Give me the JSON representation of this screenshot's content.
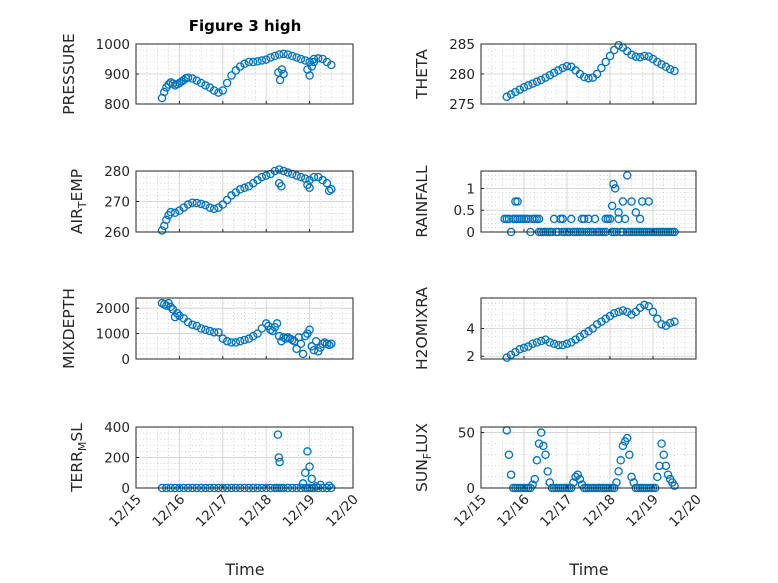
{
  "figure": {
    "title": "Figure 3 high"
  },
  "chart_data": [
    {
      "type": "scatter",
      "id": "pressure",
      "ylabel": "PRESSURE",
      "ylim": [
        800,
        1000
      ],
      "yticks": [
        800,
        900,
        1000
      ],
      "x": [
        15.6,
        15.65,
        15.7,
        15.75,
        15.8,
        15.85,
        15.9,
        15.95,
        16.0,
        16.05,
        16.1,
        16.15,
        16.2,
        16.3,
        16.4,
        16.5,
        16.6,
        16.7,
        16.8,
        16.9,
        17.0,
        17.1,
        17.2,
        17.3,
        17.4,
        17.5,
        17.6,
        17.7,
        17.8,
        17.9,
        18.0,
        18.1,
        18.2,
        18.3,
        18.4,
        18.5,
        18.6,
        18.7,
        18.8,
        18.9,
        19.0,
        19.1,
        19.2,
        19.3,
        19.4,
        19.5,
        18.28,
        18.32,
        18.36,
        18.4,
        18.95,
        19.0,
        19.05,
        19.1
      ],
      "y": [
        820,
        840,
        855,
        865,
        872,
        868,
        862,
        866,
        870,
        875,
        880,
        886,
        888,
        885,
        878,
        870,
        862,
        855,
        845,
        838,
        845,
        870,
        895,
        912,
        925,
        934,
        940,
        940,
        942,
        945,
        948,
        955,
        960,
        965,
        967,
        965,
        960,
        955,
        950,
        945,
        940,
        950,
        952,
        950,
        940,
        930,
        905,
        880,
        915,
        900,
        915,
        895,
        925,
        940
      ]
    },
    {
      "type": "scatter",
      "id": "theta",
      "ylabel": "THETA",
      "ylim": [
        275,
        285
      ],
      "yticks": [
        275,
        280,
        285
      ],
      "x": [
        15.6,
        15.7,
        15.8,
        15.9,
        16.0,
        16.1,
        16.2,
        16.3,
        16.4,
        16.5,
        16.6,
        16.7,
        16.8,
        16.9,
        17.0,
        17.1,
        17.2,
        17.3,
        17.4,
        17.5,
        17.6,
        17.7,
        17.8,
        17.9,
        18.0,
        18.1,
        18.2,
        18.3,
        18.4,
        18.5,
        18.6,
        18.7,
        18.8,
        18.9,
        19.0,
        19.1,
        19.2,
        19.3,
        19.4,
        19.5
      ],
      "y": [
        276.2,
        276.6,
        277.0,
        277.4,
        277.8,
        278.1,
        278.4,
        278.7,
        279.0,
        279.4,
        279.8,
        280.2,
        280.6,
        281.0,
        281.3,
        281.2,
        280.6,
        280.0,
        279.5,
        279.3,
        279.4,
        280.0,
        281.0,
        282.0,
        283.0,
        284.0,
        284.8,
        284.4,
        283.8,
        283.2,
        282.9,
        282.8,
        283.0,
        282.9,
        282.5,
        282.0,
        281.6,
        281.2,
        280.8,
        280.5
      ]
    },
    {
      "type": "scatter",
      "id": "air_temp",
      "ylabel": "AIR_TEMP",
      "ylim": [
        260,
        280
      ],
      "yticks": [
        260,
        270,
        280
      ],
      "x": [
        15.6,
        15.65,
        15.7,
        15.75,
        15.8,
        15.9,
        16.0,
        16.1,
        16.2,
        16.3,
        16.4,
        16.5,
        16.6,
        16.7,
        16.8,
        16.9,
        17.0,
        17.1,
        17.2,
        17.3,
        17.4,
        17.5,
        17.6,
        17.7,
        17.8,
        17.9,
        18.0,
        18.1,
        18.2,
        18.3,
        18.4,
        18.5,
        18.6,
        18.7,
        18.8,
        18.9,
        19.0,
        19.1,
        19.2,
        19.3,
        19.4,
        19.5,
        18.3,
        18.35,
        18.95,
        19.0,
        19.45
      ],
      "y": [
        260.5,
        262.0,
        264.0,
        265.5,
        266.5,
        266.3,
        267.0,
        268.0,
        269.0,
        269.6,
        269.5,
        269.2,
        268.8,
        268.0,
        267.6,
        268.0,
        269.0,
        270.5,
        272.0,
        273.0,
        274.0,
        274.5,
        275.0,
        276.0,
        277.0,
        278.0,
        278.5,
        279.0,
        280.0,
        280.5,
        280.0,
        279.5,
        279.0,
        278.5,
        278.0,
        277.5,
        277.0,
        278.0,
        278.0,
        277.0,
        276.0,
        274.0,
        276.0,
        275.0,
        275.5,
        274.5,
        273.5
      ]
    },
    {
      "type": "scatter",
      "id": "rainfall",
      "ylabel": "RAINFALL",
      "ylim": [
        0,
        1.4
      ],
      "yticks": [
        0,
        0.5,
        1
      ],
      "x": [
        15.55,
        15.6,
        15.65,
        15.7,
        15.75,
        15.8,
        15.85,
        15.9,
        15.95,
        16.0,
        16.05,
        16.1,
        16.15,
        16.2,
        16.25,
        16.3,
        16.35,
        16.4,
        16.45,
        16.5,
        16.55,
        16.6,
        16.65,
        16.7,
        16.75,
        16.8,
        16.85,
        16.9,
        16.95,
        17.0,
        17.05,
        17.1,
        17.15,
        17.2,
        17.25,
        17.3,
        17.35,
        17.4,
        17.45,
        17.5,
        17.55,
        17.6,
        17.65,
        17.7,
        17.75,
        17.8,
        17.85,
        17.9,
        17.95,
        18.0,
        18.05,
        18.1,
        18.15,
        18.2,
        18.25,
        18.3,
        18.35,
        18.4,
        18.45,
        18.5,
        18.55,
        18.6,
        18.65,
        18.7,
        18.75,
        18.8,
        18.85,
        18.9,
        18.95,
        19.0,
        19.05,
        19.1,
        19.15,
        19.2,
        19.25,
        19.3,
        19.35,
        19.4,
        19.45,
        19.5,
        15.8,
        15.85,
        16.35,
        16.9,
        17.35,
        17.5,
        17.9,
        18.05,
        18.08,
        18.12,
        18.2,
        18.3,
        18.4,
        18.5,
        18.6,
        18.7,
        18.75,
        18.9
      ],
      "y": [
        0.3,
        0.3,
        0.3,
        0.0,
        0.3,
        0.3,
        0.3,
        0.3,
        0.3,
        0.3,
        0.3,
        0.3,
        0.0,
        0.3,
        0.3,
        0.3,
        0.0,
        0.0,
        0.0,
        0.0,
        0.0,
        0.0,
        0.0,
        0.3,
        0.0,
        0.0,
        0.3,
        0.0,
        0.0,
        0.0,
        0.0,
        0.3,
        0.0,
        0.0,
        0.0,
        0.0,
        0.0,
        0.3,
        0.0,
        0.0,
        0.0,
        0.0,
        0.3,
        0.0,
        0.0,
        0.0,
        0.0,
        0.0,
        0.3,
        0.3,
        0.0,
        0.0,
        0.0,
        0.3,
        0.0,
        0.0,
        0.3,
        0.0,
        0.0,
        0.0,
        0.0,
        0.0,
        0.0,
        0.0,
        0.0,
        0.0,
        0.0,
        0.0,
        0.0,
        0.0,
        0.0,
        0.0,
        0.0,
        0.0,
        0.0,
        0.0,
        0.0,
        0.0,
        0.0,
        0.0,
        0.7,
        0.7,
        0.3,
        0.3,
        0.3,
        0.3,
        0.3,
        0.6,
        1.1,
        1.0,
        0.45,
        0.7,
        1.3,
        0.7,
        0.45,
        0.3,
        0.7,
        0.7
      ]
    },
    {
      "type": "scatter",
      "id": "mixdepth",
      "ylabel": "MIXDEPTH",
      "ylim": [
        0,
        2400
      ],
      "yticks": [
        0,
        1000,
        2000
      ],
      "x": [
        15.6,
        15.65,
        15.7,
        15.75,
        15.8,
        15.85,
        15.9,
        15.95,
        16.0,
        16.1,
        16.2,
        16.3,
        16.4,
        16.5,
        16.6,
        16.7,
        16.8,
        16.9,
        17.0,
        17.1,
        17.2,
        17.3,
        17.4,
        17.5,
        17.6,
        17.7,
        17.8,
        17.9,
        18.0,
        18.05,
        18.1,
        18.15,
        18.2,
        18.25,
        18.3,
        18.35,
        18.4,
        18.45,
        18.5,
        18.55,
        18.6,
        18.65,
        18.7,
        18.75,
        18.8,
        18.85,
        18.9,
        18.95,
        19.0,
        19.05,
        19.1,
        19.15,
        19.2,
        19.25,
        19.3,
        19.35,
        19.4,
        19.45,
        19.5
      ],
      "y": [
        2200,
        2150,
        2100,
        2200,
        2050,
        1950,
        1650,
        1800,
        1700,
        1600,
        1450,
        1350,
        1300,
        1200,
        1150,
        1100,
        1050,
        1050,
        800,
        700,
        650,
        650,
        700,
        750,
        800,
        900,
        1000,
        1200,
        1400,
        1300,
        1150,
        1100,
        1250,
        1400,
        900,
        700,
        850,
        800,
        850,
        800,
        750,
        700,
        400,
        850,
        600,
        200,
        900,
        1000,
        1150,
        500,
        350,
        700,
        300,
        450,
        600,
        650,
        600,
        550,
        600
      ]
    },
    {
      "type": "scatter",
      "id": "h2omixra",
      "ylabel": "H2OMIXRA",
      "ylim": [
        1.8,
        6.2
      ],
      "yticks": [
        2,
        4
      ],
      "x": [
        15.6,
        15.7,
        15.8,
        15.9,
        16.0,
        16.1,
        16.2,
        16.3,
        16.4,
        16.5,
        16.6,
        16.7,
        16.8,
        16.9,
        17.0,
        17.1,
        17.2,
        17.3,
        17.4,
        17.5,
        17.6,
        17.7,
        17.8,
        17.9,
        18.0,
        18.1,
        18.2,
        18.3,
        18.4,
        18.5,
        18.6,
        18.7,
        18.8,
        18.9,
        19.0,
        19.1,
        19.2,
        19.3,
        19.4,
        19.5
      ],
      "y": [
        1.9,
        2.1,
        2.3,
        2.5,
        2.6,
        2.7,
        2.9,
        3.0,
        3.1,
        3.2,
        3.0,
        2.9,
        2.8,
        2.8,
        2.9,
        3.0,
        3.2,
        3.4,
        3.6,
        3.8,
        4.0,
        4.3,
        4.5,
        4.7,
        4.9,
        5.1,
        5.2,
        5.3,
        5.2,
        5.0,
        5.2,
        5.5,
        5.7,
        5.6,
        5.2,
        4.7,
        4.3,
        4.2,
        4.4,
        4.5
      ]
    },
    {
      "type": "scatter",
      "id": "terr_msl",
      "ylabel": "TERR_MSL",
      "ylim": [
        0,
        400
      ],
      "yticks": [
        0,
        200,
        400
      ],
      "x": [
        15.6,
        15.7,
        15.8,
        15.9,
        16.0,
        16.1,
        16.2,
        16.3,
        16.4,
        16.5,
        16.6,
        16.7,
        16.8,
        16.9,
        17.0,
        17.1,
        17.2,
        17.3,
        17.4,
        17.5,
        17.6,
        17.7,
        17.8,
        17.9,
        18.0,
        18.1,
        18.2,
        18.25,
        18.3,
        18.35,
        18.4,
        18.5,
        18.6,
        18.7,
        18.8,
        18.9,
        18.95,
        19.0,
        19.05,
        19.1,
        19.2,
        19.3,
        19.4,
        19.5,
        18.27,
        18.29,
        18.31,
        18.85,
        18.9,
        18.95,
        19.0,
        19.05,
        19.15,
        19.25,
        19.45
      ],
      "y": [
        0,
        0,
        0,
        0,
        0,
        0,
        0,
        0,
        0,
        0,
        0,
        0,
        0,
        0,
        0,
        0,
        0,
        0,
        0,
        0,
        0,
        0,
        0,
        0,
        0,
        0,
        0,
        0,
        0,
        0,
        0,
        0,
        0,
        0,
        0,
        0,
        0,
        0,
        0,
        0,
        0,
        0,
        0,
        0,
        350,
        200,
        170,
        30,
        100,
        240,
        140,
        60,
        10,
        20,
        15
      ]
    },
    {
      "type": "scatter",
      "id": "sun_flux",
      "ylabel": "SUN_FLUX",
      "ylim": [
        0,
        55
      ],
      "yticks": [
        0,
        50
      ],
      "x": [
        15.6,
        15.65,
        15.7,
        15.75,
        15.8,
        15.85,
        15.9,
        15.95,
        16.0,
        16.05,
        16.1,
        16.15,
        16.2,
        16.25,
        16.3,
        16.35,
        16.4,
        16.45,
        16.5,
        16.55,
        16.6,
        16.65,
        16.7,
        16.75,
        16.8,
        16.85,
        16.9,
        16.95,
        17.0,
        17.05,
        17.1,
        17.15,
        17.2,
        17.25,
        17.3,
        17.35,
        17.4,
        17.45,
        17.5,
        17.55,
        17.6,
        17.65,
        17.7,
        17.75,
        17.8,
        17.85,
        17.9,
        17.95,
        18.0,
        18.05,
        18.1,
        18.15,
        18.2,
        18.25,
        18.3,
        18.35,
        18.4,
        18.45,
        18.5,
        18.55,
        18.6,
        18.65,
        18.7,
        18.75,
        18.8,
        18.85,
        18.9,
        18.95,
        19.0,
        19.05,
        19.1,
        19.15,
        19.2,
        19.25,
        19.3,
        19.35,
        19.4,
        19.45,
        19.5
      ],
      "y": [
        52,
        30,
        12,
        0,
        0,
        0,
        0,
        0,
        0,
        0,
        0,
        0,
        3,
        8,
        25,
        40,
        50,
        38,
        30,
        15,
        5,
        0,
        0,
        0,
        0,
        0,
        0,
        0,
        0,
        0,
        0,
        5,
        10,
        12,
        8,
        3,
        0,
        0,
        0,
        0,
        0,
        0,
        0,
        0,
        0,
        0,
        0,
        0,
        0,
        0,
        0,
        5,
        15,
        25,
        38,
        42,
        45,
        30,
        10,
        5,
        0,
        0,
        0,
        0,
        0,
        0,
        0,
        0,
        0,
        0,
        10,
        20,
        40,
        30,
        20,
        12,
        8,
        5,
        2
      ]
    }
  ],
  "x_axis": {
    "ticks": [
      15,
      16,
      17,
      18,
      19,
      20
    ],
    "tick_labels": [
      "12/15",
      "12/16",
      "12/17",
      "12/18",
      "12/19",
      "12/20"
    ],
    "label": "Time"
  },
  "colors": {
    "marker": "#0072BD",
    "axis": "#262626",
    "grid": "#b8b8b8"
  }
}
